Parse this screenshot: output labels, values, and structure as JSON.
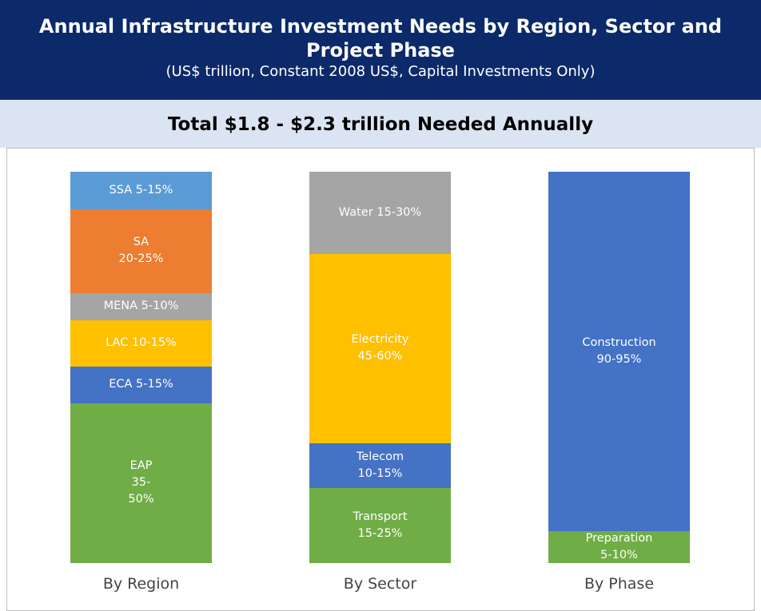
{
  "chart_data": {
    "type": "stacked-bar",
    "title": "Annual Infrastructure Investment Needs by Region, Sector and Project Phase",
    "subtitle": "(US$ trillion, Constant 2008 US$, Capital Investments Only)",
    "banner": "Total $1.8 - $2.3 trillion Needed Annually",
    "bars": [
      {
        "category": "By Region",
        "segments": [
          {
            "name": "SSA 5-15%",
            "color": "#5b9bd5",
            "value": 9.6
          },
          {
            "name": "SA\n20-25%",
            "color": "#ed7d31",
            "value": 21.4
          },
          {
            "name": "MENA 5-10%",
            "color": "#a5a5a5",
            "value": 6.9
          },
          {
            "name": "LAC 10-15%",
            "color": "#ffc000",
            "value": 11.8
          },
          {
            "name": "ECA 5-15%",
            "color": "#4472c4",
            "value": 9.4
          },
          {
            "name": "EAP\n35-\n50%",
            "color": "#70ad47",
            "value": 40.9
          }
        ]
      },
      {
        "category": "By Sector",
        "segments": [
          {
            "name": "Water 15-30%",
            "color": "#a5a5a5",
            "value": 21.0
          },
          {
            "name": "Electricity\n45-60%",
            "color": "#ffc000",
            "value": 48.4
          },
          {
            "name": "Telecom\n10-15%",
            "color": "#4472c4",
            "value": 11.4
          },
          {
            "name": "Transport\n15-25%",
            "color": "#70ad47",
            "value": 19.2
          }
        ]
      },
      {
        "category": "By Phase",
        "segments": [
          {
            "name": "Construction\n90-95%",
            "color": "#4472c4",
            "value": 91.8
          },
          {
            "name": "Preparation\n5-10%",
            "color": "#70ad47",
            "value": 8.2
          }
        ]
      }
    ]
  }
}
